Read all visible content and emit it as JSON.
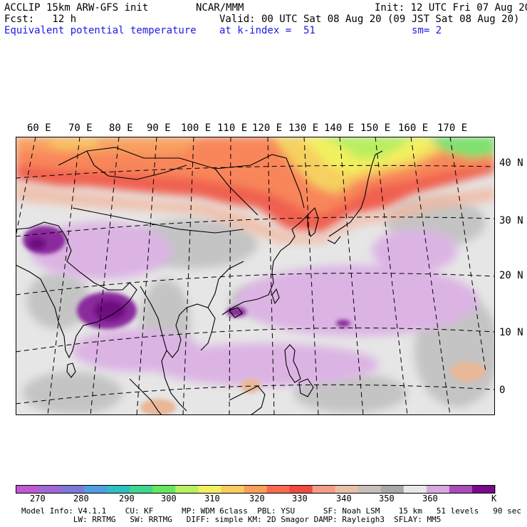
{
  "header": {
    "model_line": "ACCLIP 15km ARW-GFS init",
    "org": "NCAR/MMM",
    "init": "Init: 12 UTC Fri 07 Aug 20",
    "fcst": "Fcst:   12 h",
    "valid": "Valid: 00 UTC Sat 08 Aug 20 (09 JST Sat 08 Aug 20)",
    "field": "Equivalent potential temperature",
    "level": "at k-index =  51",
    "smooth": "sm= 2"
  },
  "longitude_labels": [
    "60 E",
    "70 E",
    "80 E",
    "90 E",
    "100 E",
    "110 E",
    "120 E",
    "130 E",
    "140 E",
    "150 E",
    "160 E",
    "170 E"
  ],
  "latitude_labels": [
    "40 N",
    "30 N",
    "20 N",
    "10 N",
    "0"
  ],
  "colorbar": {
    "unit": "K",
    "ticks": [
      "270",
      "280",
      "290",
      "300",
      "310",
      "320",
      "330",
      "340",
      "350",
      "360"
    ],
    "colors": [
      "#c05ad2",
      "#a068d6",
      "#7c78d8",
      "#4e9ee0",
      "#2ec0c0",
      "#3ed68e",
      "#66e660",
      "#b8f060",
      "#f2f060",
      "#f8cc60",
      "#f8a058",
      "#f86a50",
      "#ee4a40",
      "#f49c88",
      "#e8c0a8",
      "#c8c0b8",
      "#a8a8a8",
      "#e8e8e8",
      "#d8a8e0",
      "#aa4cb8",
      "#7a0a8a"
    ]
  },
  "footer": {
    "line1": "Model Info: V4.1.1    CU: KF      MP: WDM 6class  PBL: YSU      SF: Noah LSM    15 km   51 levels   90 sec",
    "line2": "           LW: RRTMG   SW: RRTMG   DIFF: simple KM: 2D Smagor DAMP: Rayleigh3  SFLAY: MM5"
  }
}
